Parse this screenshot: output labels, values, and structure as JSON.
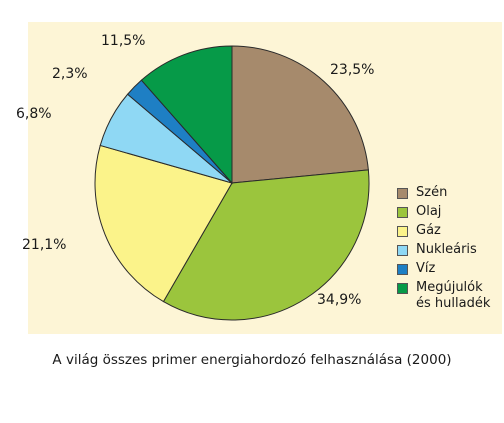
{
  "chart_data": {
    "type": "pie",
    "title": "",
    "caption": "A világ összes primer energiahordozó felhasználása (2000)",
    "legend_position": "right",
    "slices": [
      {
        "name": "Szén",
        "label": "Szén",
        "value": 23.5,
        "value_label": "23,5%",
        "color": "#a68a6c"
      },
      {
        "name": "Olaj",
        "label": "Olaj",
        "value": 34.9,
        "value_label": "34,9%",
        "color": "#9bc53d"
      },
      {
        "name": "Gáz",
        "label": "Gáz",
        "value": 21.1,
        "value_label": "21,1%",
        "color": "#fbf38a"
      },
      {
        "name": "Nukleáris",
        "label": "Nukleáris",
        "value": 6.8,
        "value_label": "6,8%",
        "color": "#8fd8f4"
      },
      {
        "name": "Víz",
        "label": "Víz",
        "value": 2.3,
        "value_label": "2,3%",
        "color": "#1e7fc4"
      },
      {
        "name": "Megújulók és hulladék",
        "label": [
          "Megújulók",
          "és hulladék"
        ],
        "value": 11.5,
        "value_label": "11,5%",
        "color": "#069a48"
      }
    ]
  }
}
